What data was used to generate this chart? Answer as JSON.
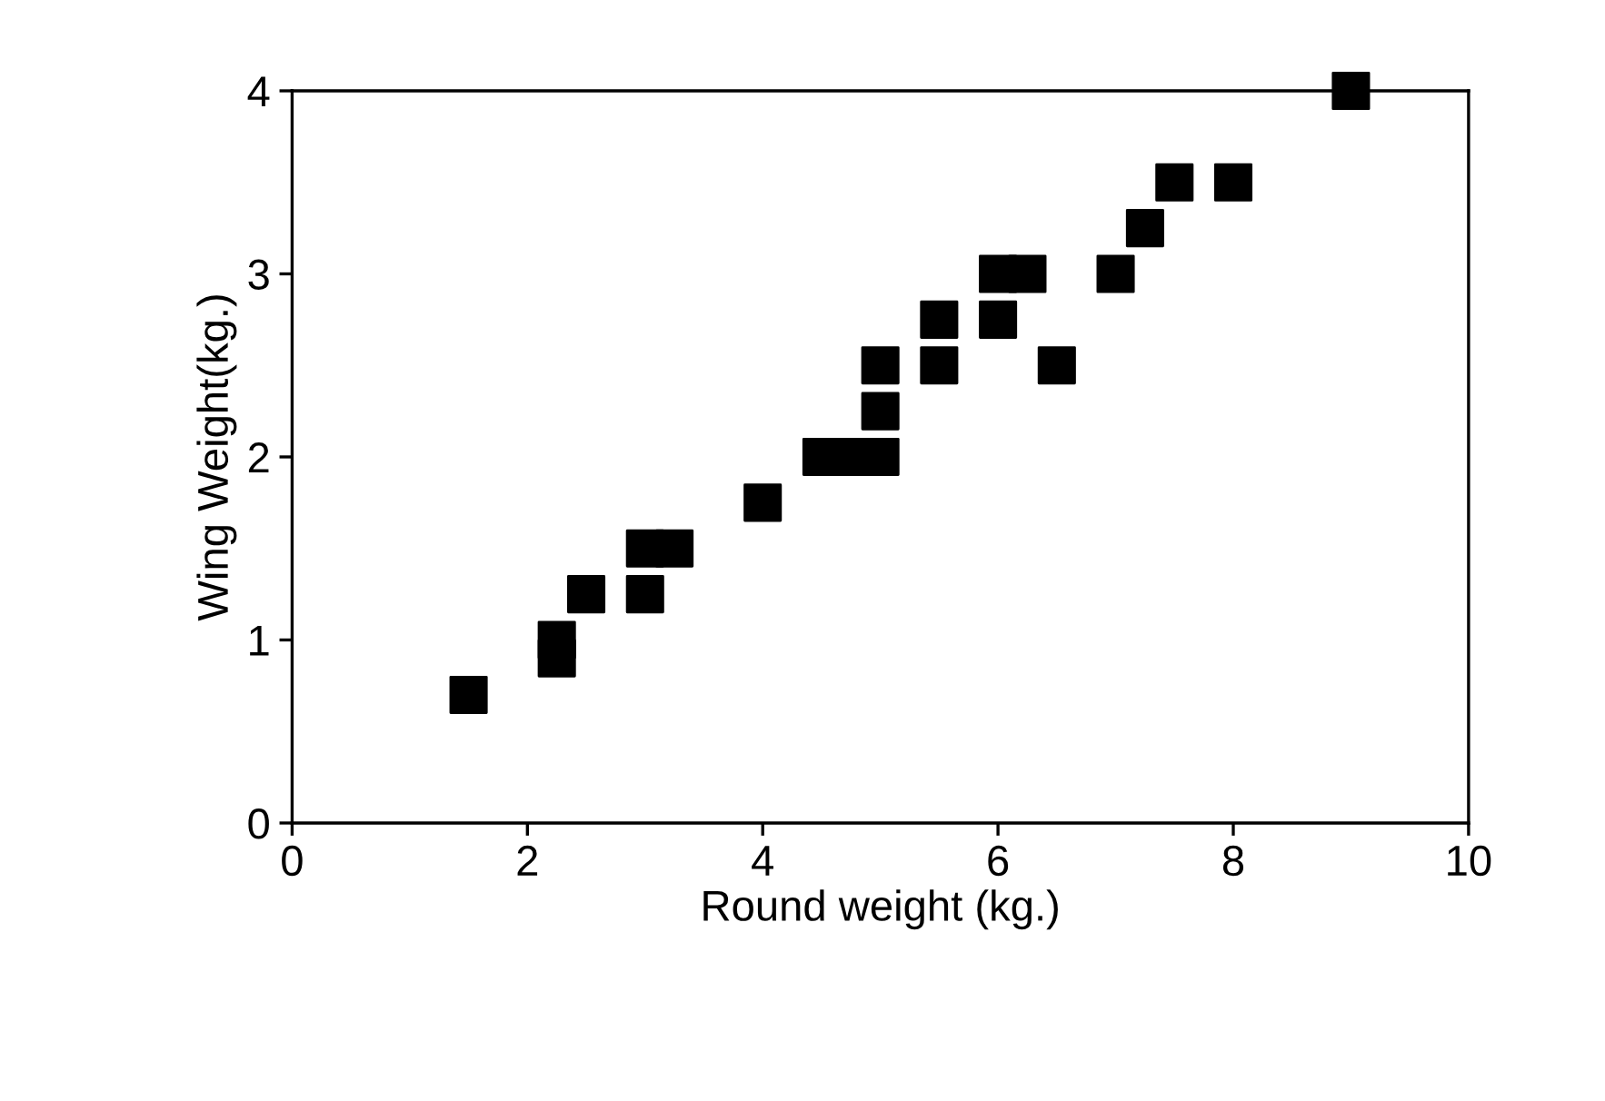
{
  "chart_data": {
    "type": "scatter",
    "xlabel": "Round weight (kg.)",
    "ylabel": "Wing Weight(kg.)",
    "x": [
      1.5,
      2.25,
      2.25,
      2.5,
      3,
      3,
      3.25,
      4,
      4.5,
      4.75,
      5,
      5,
      5,
      5.5,
      5.5,
      6,
      6,
      6.25,
      6.5,
      7,
      7.25,
      7.5,
      8,
      9
    ],
    "series": [
      {
        "color": "#000000",
        "values": [
          0.7,
          1.0,
          0.9,
          1.25,
          1.25,
          1.5,
          1.5,
          1.75,
          2,
          2,
          2,
          2.25,
          2.5,
          2.5,
          2.75,
          2.75,
          3,
          3,
          2.5,
          3,
          3.25,
          3.5,
          3.5,
          4
        ]
      }
    ],
    "xlim": [
      0,
      10
    ],
    "ylim": [
      0,
      4
    ],
    "xticks": [
      0,
      2,
      4,
      6,
      8,
      10
    ],
    "yticks": [
      0,
      1,
      2,
      3,
      4
    ],
    "marker": "square",
    "grid": false,
    "legend": false
  }
}
